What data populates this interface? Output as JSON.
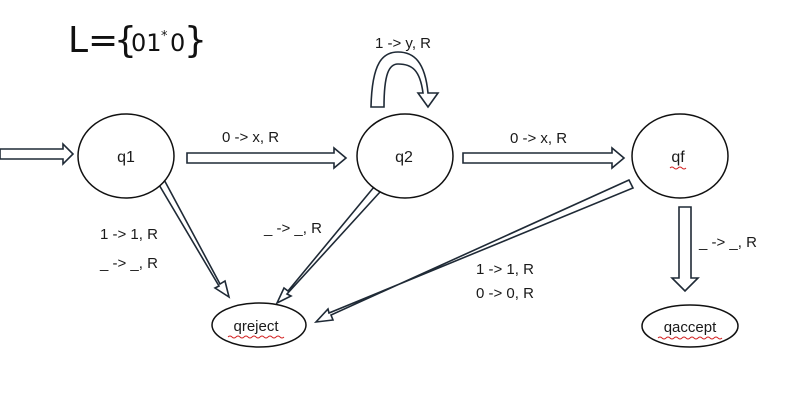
{
  "title": {
    "lhs": "L=",
    "open_brace": "{",
    "body": "01",
    "sup": "*",
    "tail": "0",
    "close_brace": "}"
  },
  "states": {
    "q1": "q1",
    "q2": "q2",
    "qf": "qf",
    "qreject": "qreject",
    "qaccept": "qaccept"
  },
  "transitions": {
    "q2_self": "1 -> y, R",
    "q1_q2": "0 -> x, R",
    "q2_qf": "0 -> x, R",
    "q1_reject_a": "1 -> 1, R",
    "q1_reject_b": "_ -> _, R",
    "q2_reject": "_ -> _, R",
    "qf_reject_a": "1 -> 1, R",
    "qf_reject_b": "0 -> 0, R",
    "qf_accept": "_ -> _, R"
  }
}
